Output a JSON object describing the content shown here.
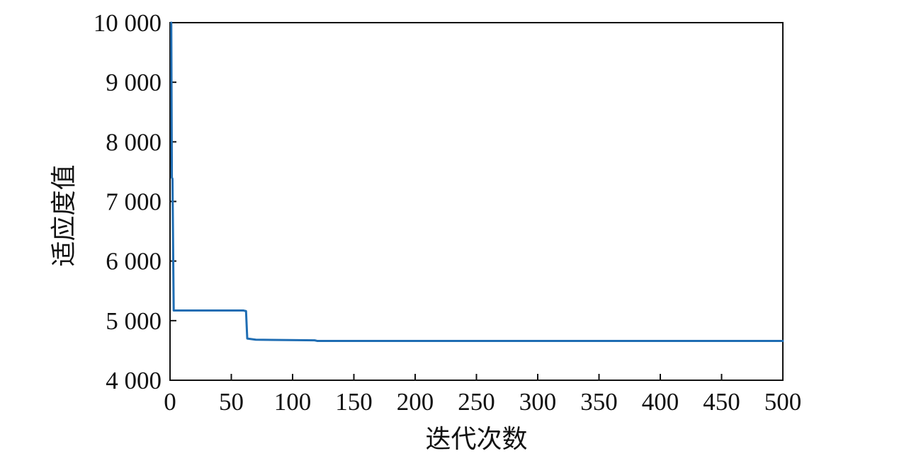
{
  "chart_data": {
    "type": "line",
    "title": "",
    "xlabel": "迭代次数",
    "ylabel": "适应度值",
    "xlim": [
      0,
      500
    ],
    "ylim": [
      4000,
      10000
    ],
    "grid": false,
    "x_ticks": [
      0,
      50,
      100,
      150,
      200,
      250,
      300,
      350,
      400,
      450,
      500
    ],
    "x_tick_labels": [
      "0",
      "50",
      "100",
      "150",
      "200",
      "250",
      "300",
      "350",
      "400",
      "450",
      "500"
    ],
    "y_ticks": [
      4000,
      5000,
      6000,
      7000,
      8000,
      9000,
      10000
    ],
    "y_tick_labels": [
      "4 000",
      "5 000",
      "6 000",
      "7 000",
      "8 000",
      "9 000",
      "10 000"
    ],
    "series": [
      {
        "color": "#1f6db3",
        "points": [
          [
            1,
            10000
          ],
          [
            1.5,
            7400
          ],
          [
            2,
            7380
          ],
          [
            3,
            5170
          ],
          [
            60,
            5170
          ],
          [
            62,
            5160
          ],
          [
            63,
            4700
          ],
          [
            70,
            4680
          ],
          [
            118,
            4670
          ],
          [
            120,
            4660
          ],
          [
            500,
            4660
          ]
        ]
      }
    ]
  }
}
